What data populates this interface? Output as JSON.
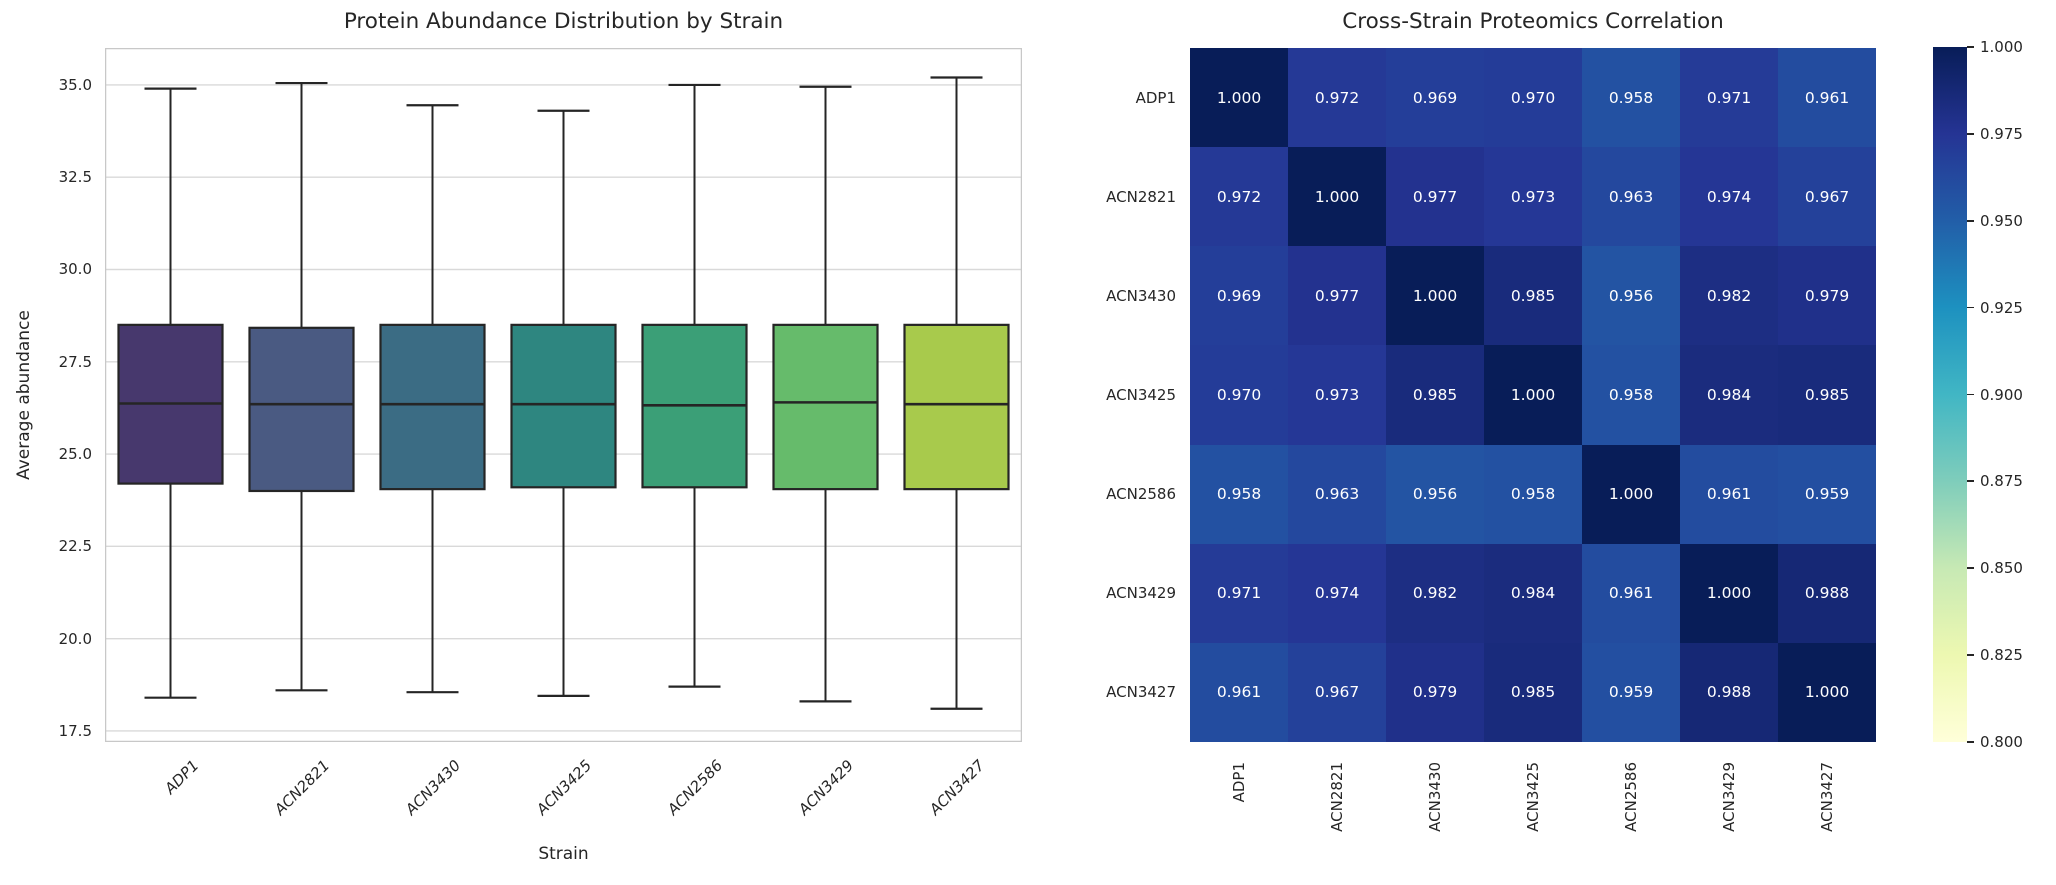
{
  "figure": {
    "background": "#ffffff",
    "text_color": "#262626",
    "grid_color": "#d9d9d9",
    "spine_color": "#c8c8c8",
    "box_edge_color": "#252525"
  },
  "chart_data": [
    {
      "type": "box",
      "title": "Protein Abundance Distribution by Strain",
      "xlabel": "Strain",
      "ylabel": "Average abundance",
      "ylim": [
        17.2,
        36.0
      ],
      "yticks": [
        17.5,
        20.0,
        22.5,
        25.0,
        27.5,
        30.0,
        32.5,
        35.0
      ],
      "grid": true,
      "categories": [
        "ADP1",
        "ACN2821",
        "ACN3430",
        "ACN3425",
        "ACN2586",
        "ACN3429",
        "ACN3427"
      ],
      "box_colors": [
        "#47386D",
        "#4A5A82",
        "#3B6C84",
        "#2E8680",
        "#3B9F77",
        "#66BB6B",
        "#A8CA4C"
      ],
      "box_stats": [
        {
          "whisker_low": 18.4,
          "q1": 24.2,
          "median": 26.37,
          "q3": 28.5,
          "whisker_high": 34.9
        },
        {
          "whisker_low": 18.6,
          "q1": 24.0,
          "median": 26.35,
          "q3": 28.42,
          "whisker_high": 35.05
        },
        {
          "whisker_low": 18.55,
          "q1": 24.05,
          "median": 26.35,
          "q3": 28.5,
          "whisker_high": 34.45
        },
        {
          "whisker_low": 18.45,
          "q1": 24.1,
          "median": 26.35,
          "q3": 28.5,
          "whisker_high": 34.3
        },
        {
          "whisker_low": 18.7,
          "q1": 24.1,
          "median": 26.32,
          "q3": 28.5,
          "whisker_high": 35.0
        },
        {
          "whisker_low": 18.3,
          "q1": 24.05,
          "median": 26.4,
          "q3": 28.5,
          "whisker_high": 34.95
        },
        {
          "whisker_low": 18.1,
          "q1": 24.05,
          "median": 26.35,
          "q3": 28.5,
          "whisker_high": 35.2
        }
      ]
    },
    {
      "type": "heatmap",
      "title": "Cross-Strain Proteomics Correlation",
      "labels": [
        "ADP1",
        "ACN2821",
        "ACN3430",
        "ACN3425",
        "ACN2586",
        "ACN3429",
        "ACN3427"
      ],
      "matrix": [
        [
          1.0,
          0.972,
          0.969,
          0.97,
          0.958,
          0.971,
          0.961
        ],
        [
          0.972,
          1.0,
          0.977,
          0.973,
          0.963,
          0.974,
          0.967
        ],
        [
          0.969,
          0.977,
          1.0,
          0.985,
          0.956,
          0.982,
          0.979
        ],
        [
          0.97,
          0.973,
          0.985,
          1.0,
          0.958,
          0.984,
          0.985
        ],
        [
          0.958,
          0.963,
          0.956,
          0.958,
          1.0,
          0.961,
          0.959
        ],
        [
          0.971,
          0.974,
          0.982,
          0.984,
          0.961,
          1.0,
          0.988
        ],
        [
          0.961,
          0.967,
          0.979,
          0.985,
          0.959,
          0.988,
          1.0
        ]
      ],
      "value_format_decimals": 3,
      "cell_text_color": "#ffffff",
      "vmin": 0.8,
      "vmax": 1.0,
      "colorbar_ticks": [
        "1.000",
        "0.975",
        "0.950",
        "0.925",
        "0.900",
        "0.875",
        "0.850",
        "0.825",
        "0.800"
      ],
      "colormap": {
        "name": "YlGnBu",
        "stops": [
          [
            0.0,
            "#ffffd9"
          ],
          [
            0.125,
            "#edf8b1"
          ],
          [
            0.25,
            "#c7e9b4"
          ],
          [
            0.375,
            "#7fcdbb"
          ],
          [
            0.5,
            "#41b6c4"
          ],
          [
            0.625,
            "#1d91c0"
          ],
          [
            0.75,
            "#225ea8"
          ],
          [
            0.875,
            "#253494"
          ],
          [
            1.0,
            "#081d58"
          ]
        ]
      }
    }
  ]
}
